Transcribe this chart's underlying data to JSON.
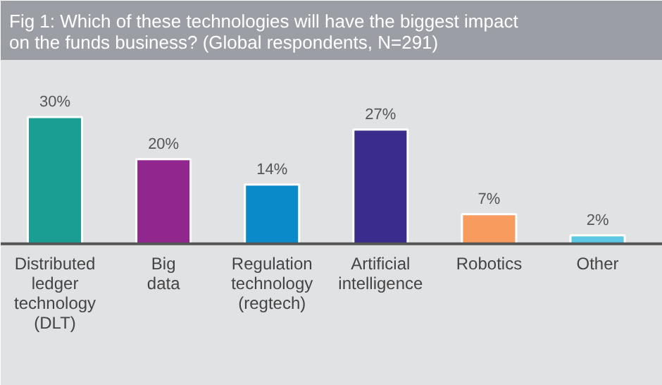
{
  "chart_data": {
    "type": "bar",
    "title": "Fig 1: Which of these technologies will have the biggest impact on the funds business? (Global respondents, N=291)",
    "categories": [
      "Distributed ledger technology (DLT)",
      "Big data",
      "Regulation technology (regtech)",
      "Artificial intelligence",
      "Robotics",
      "Other"
    ],
    "values": [
      30,
      20,
      14,
      27,
      7,
      2
    ],
    "colors": [
      "#1a9e94",
      "#92268f",
      "#0a8ac8",
      "#3a2c8c",
      "#f79b5f",
      "#5cc8e6"
    ],
    "value_labels": [
      "30%",
      "20%",
      "14%",
      "27%",
      "7%",
      "2%"
    ],
    "data_labels": false
  }
}
